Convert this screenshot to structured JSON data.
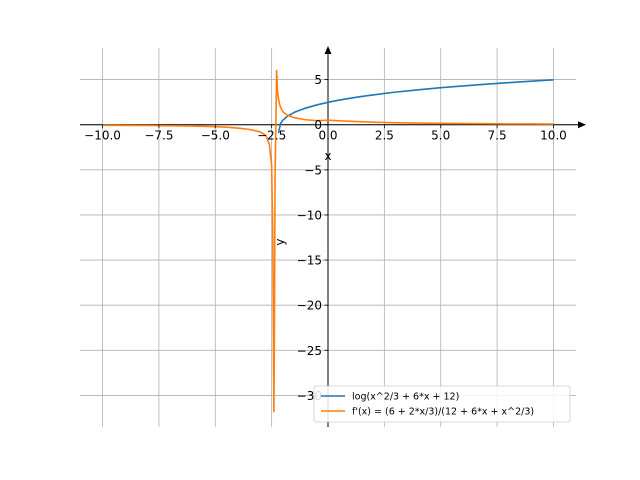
{
  "chart_data": {
    "type": "line",
    "xlabel": "x",
    "ylabel": "y",
    "xlim": [
      -11,
      11
    ],
    "ylim": [
      -33.5,
      8.5
    ],
    "x_ticks": [
      -10.0,
      -7.5,
      -5.0,
      -2.5,
      0.0,
      2.5,
      5.0,
      7.5,
      10.0
    ],
    "x_tick_labels": [
      "−10.0",
      "−7.5",
      "−5.0",
      "−2.5",
      "0.0",
      "2.5",
      "5.0",
      "7.5",
      "10.0"
    ],
    "y_ticks": [
      5,
      0,
      -5,
      -10,
      -15,
      -20,
      -25,
      -30
    ],
    "y_tick_labels": [
      "5",
      "0",
      "−5",
      "−10",
      "−15",
      "−20",
      "−25",
      "−30"
    ],
    "grid": true,
    "legend_position": "bottom-right",
    "series": [
      {
        "name": "log(x^2/3 + 6*x + 12)",
        "color": "#1f77b4",
        "x": [
          -2.2,
          -2.1,
          -2.0,
          -1.8,
          -1.5,
          -1.2,
          -1.0,
          -0.5,
          0.0,
          0.5,
          1.0,
          1.5,
          2.0,
          2.5,
          3.0,
          4.0,
          5.0,
          6.0,
          7.0,
          8.0,
          9.0,
          10.0
        ],
        "y": [
          -0.93,
          0.14,
          0.51,
          0.94,
          1.36,
          1.66,
          1.83,
          2.19,
          2.48,
          2.73,
          2.94,
          3.13,
          3.3,
          3.46,
          3.61,
          3.87,
          4.1,
          4.3,
          4.49,
          4.66,
          4.82,
          4.97
        ]
      },
      {
        "name": "f'(x) = (6 + 2*x/3)/(12 + 6*x + x^2/3)",
        "color": "#ff7f0e",
        "x": [
          -10.0,
          -9.0,
          -8.0,
          -7.0,
          -6.0,
          -5.0,
          -4.5,
          -4.0,
          -3.5,
          -3.0,
          -2.75,
          -2.6,
          -2.5,
          -2.45,
          -2.4,
          -2.38,
          -2.35,
          -2.3,
          -2.28,
          -2.26,
          -2.24,
          -2.2,
          -2.15,
          -2.1,
          -2.0,
          -1.8,
          -1.5,
          -1.0,
          -0.5,
          0.0,
          0.5,
          1.0,
          2.0,
          3.0,
          4.0,
          5.0,
          6.0,
          7.0,
          8.0,
          9.0,
          10.0
        ],
        "y": [
          -0.06,
          -0.08,
          -0.09,
          -0.12,
          -0.15,
          -0.22,
          -0.28,
          -0.37,
          -0.52,
          -0.8,
          -1.2,
          -2.2,
          -4.5,
          -12.0,
          -31.8,
          -25.0,
          -6.0,
          2.0,
          6.0,
          5.0,
          3.8,
          2.9,
          2.3,
          1.9,
          1.43,
          1.05,
          0.78,
          0.55,
          0.45,
          0.5,
          0.43,
          0.37,
          0.28,
          0.22,
          0.18,
          0.15,
          0.13,
          0.11,
          0.09,
          0.08,
          0.07
        ]
      }
    ]
  }
}
